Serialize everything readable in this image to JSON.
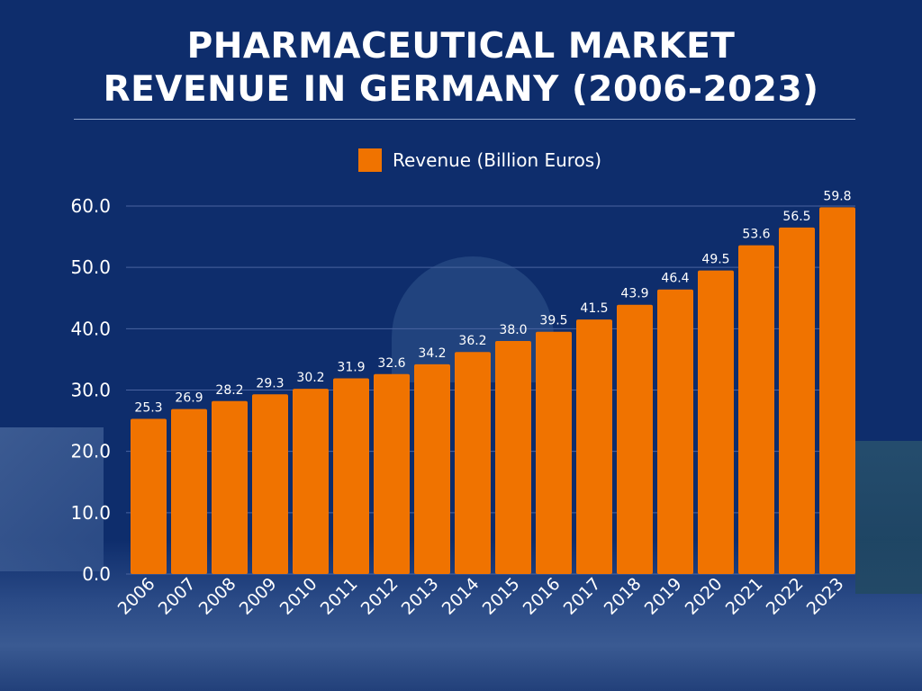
{
  "chart_data": {
    "type": "bar",
    "title": [
      "PHARMACEUTICAL MARKET",
      "REVENUE IN GERMANY (2006-2023)"
    ],
    "categories": [
      "2006",
      "2007",
      "2008",
      "2009",
      "2010",
      "2011",
      "2012",
      "2013",
      "2014",
      "2015",
      "2016",
      "2017",
      "2018",
      "2019",
      "2020",
      "2021",
      "2022",
      "2023"
    ],
    "series": [
      {
        "name": "Revenue (Billion Euros)",
        "values": [
          25.3,
          26.9,
          28.2,
          29.3,
          30.2,
          31.9,
          32.6,
          34.2,
          36.2,
          38.0,
          39.5,
          41.5,
          43.9,
          46.4,
          49.5,
          53.6,
          56.5,
          59.8
        ]
      }
    ],
    "yticks": [
      "0.0",
      "10.0",
      "20.0",
      "30.0",
      "40.0",
      "50.0",
      "60.0"
    ],
    "ylim": [
      0,
      60
    ],
    "grid": true,
    "legend": "top-center",
    "colors": {
      "bar": "#f07300",
      "background": "#0e2d6c",
      "grid": "#4a64a0"
    }
  }
}
